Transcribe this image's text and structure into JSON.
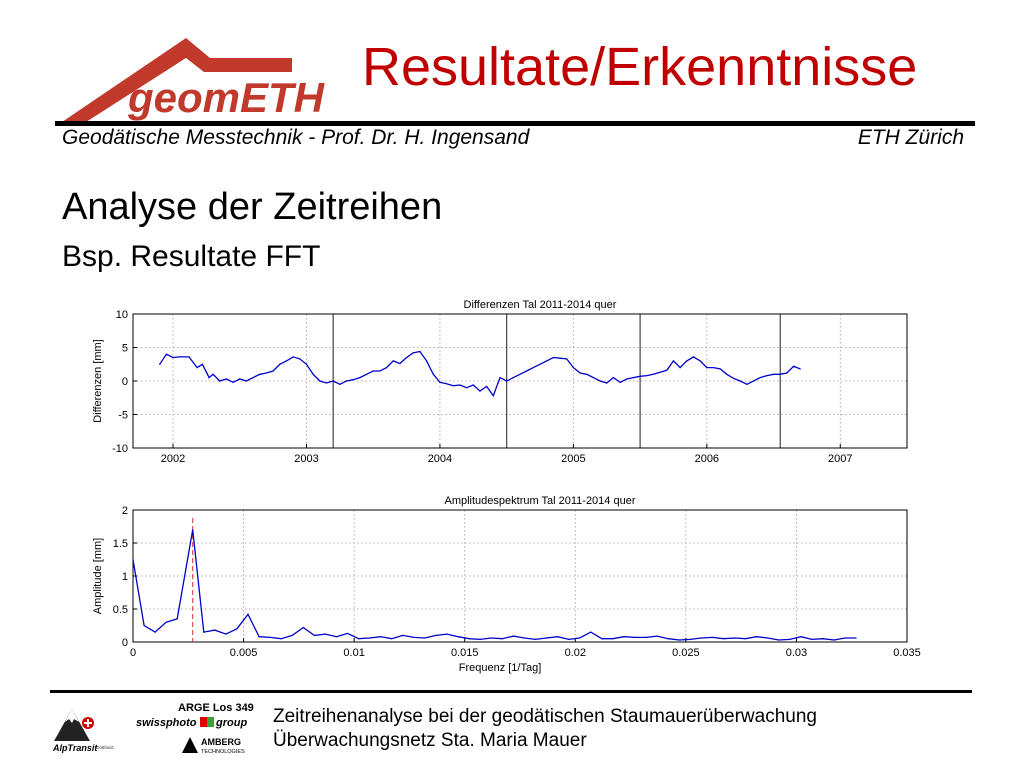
{
  "slide": {
    "logo_text": "geomETH",
    "title": "Resultate/Erkenntnisse",
    "header_left": "Geodätische Messtechnik - Prof. Dr. H. Ingensand",
    "header_right": "ETH Zürich",
    "heading": "Analyse der Zeitreihen",
    "subheading": "Bsp. Resultate FFT",
    "footer_line1": "Zeitreihenanalyse bei der geodätischen Staumauerüberwachung",
    "footer_line2": "Überwachungsnetz Sta. Maria Mauer",
    "footer_logos": {
      "arge": "ARGE Los 349",
      "swissphoto": "swissphoto",
      "group": "group",
      "alptransit": "AlpTransit",
      "alptransit_sub": "Gotthard",
      "amberg": "AMBERG",
      "amberg_sub": "TECHNOLOGIES"
    },
    "colors": {
      "title": "#c00000",
      "accent": "#c0392b",
      "series": "#0000cc",
      "marker": "#e03030"
    }
  },
  "chart_data": [
    {
      "type": "line",
      "title": "Differenzen Tal 2011-2014 quer",
      "ylabel": "Differenzen [mm]",
      "xlabel": "",
      "ylim": [
        -10,
        10
      ],
      "yticks": [
        -10,
        -5,
        0,
        5,
        10
      ],
      "xlim": [
        2001.7,
        2007.5
      ],
      "xticks": [
        2002,
        2003,
        2004,
        2005,
        2006,
        2007
      ],
      "grid": "dotted",
      "solid_verticals": [
        2003.2,
        2004.5,
        2005.5,
        2006.55
      ],
      "series": [
        {
          "x": [
            2001.9,
            2001.95,
            2002.0,
            2002.05,
            2002.12,
            2002.18,
            2002.22,
            2002.27,
            2002.3,
            2002.35,
            2002.4,
            2002.45,
            2002.5,
            2002.55,
            2002.6,
            2002.65,
            2002.7,
            2002.75,
            2002.8,
            2002.85,
            2002.9,
            2002.95,
            2003.0,
            2003.05,
            2003.1,
            2003.15,
            2003.2,
            2003.25,
            2003.3,
            2003.35,
            2003.4,
            2003.45,
            2003.5,
            2003.55,
            2003.6,
            2003.65,
            2003.7,
            2003.75,
            2003.8,
            2003.85,
            2003.9,
            2003.95,
            2004.0,
            2004.05,
            2004.1,
            2004.15,
            2004.2,
            2004.25,
            2004.3,
            2004.35,
            2004.4,
            2004.45,
            2004.5,
            2004.55,
            2004.6,
            2004.65,
            2004.7,
            2004.75,
            2004.8,
            2004.85,
            2004.9,
            2004.95,
            2005.0,
            2005.05,
            2005.1,
            2005.15,
            2005.2,
            2005.25,
            2005.3,
            2005.35,
            2005.4,
            2005.45,
            2005.5,
            2005.55,
            2005.6,
            2005.65,
            2005.7,
            2005.75,
            2005.8,
            2005.85,
            2005.9,
            2005.95,
            2006.0,
            2006.05,
            2006.1,
            2006.15,
            2006.2,
            2006.25,
            2006.3,
            2006.35,
            2006.4,
            2006.45,
            2006.5,
            2006.55,
            2006.6,
            2006.65,
            2006.7
          ],
          "values": [
            2.5,
            4.0,
            3.5,
            3.6,
            3.6,
            2.0,
            2.5,
            0.5,
            1.0,
            0.0,
            0.3,
            -0.2,
            0.3,
            0.0,
            0.5,
            1.0,
            1.2,
            1.5,
            2.5,
            3.0,
            3.6,
            3.3,
            2.5,
            1.0,
            0.0,
            -0.3,
            0.0,
            -0.5,
            0.0,
            0.2,
            0.5,
            1.0,
            1.5,
            1.5,
            2.0,
            3.0,
            2.6,
            3.5,
            4.2,
            4.4,
            3.0,
            1.0,
            -0.2,
            -0.4,
            -0.7,
            -0.6,
            -1.0,
            -0.6,
            -1.5,
            -0.8,
            -2.2,
            0.5,
            0.0,
            0.5,
            1.0,
            1.5,
            2.0,
            2.5,
            3.0,
            3.5,
            3.4,
            3.3,
            2.0,
            1.2,
            1.0,
            0.5,
            0.0,
            -0.3,
            0.5,
            -0.2,
            0.3,
            0.5,
            0.7,
            0.8,
            1.0,
            1.3,
            1.6,
            3.0,
            2.0,
            3.0,
            3.6,
            3.0,
            2.0,
            2.0,
            1.8,
            1.0,
            0.4,
            0.0,
            -0.5,
            0.0,
            0.5,
            0.8,
            1.0,
            1.0,
            1.2,
            2.2,
            1.8
          ]
        }
      ]
    },
    {
      "type": "line",
      "title": "Amplitudespektrum Tal 2011-2014 quer",
      "ylabel": "Amplitude [mm]",
      "xlabel": "Frequenz [1/Tag]",
      "ylim": [
        0,
        2
      ],
      "yticks": [
        0,
        0.5,
        1,
        1.5,
        2
      ],
      "xlim": [
        0,
        0.035
      ],
      "xticks": [
        0,
        0.005,
        0.01,
        0.015,
        0.02,
        0.025,
        0.03,
        0.035
      ],
      "xtick_labels": [
        "0",
        "0.005",
        "0.01",
        "0.015",
        "0.02",
        "0.025",
        "0.03",
        "0.035"
      ],
      "grid": "dotted",
      "marker_line_x": 0.0027,
      "series": [
        {
          "x": [
            0.0,
            0.0005,
            0.001,
            0.0015,
            0.002,
            0.0027,
            0.0032,
            0.0037,
            0.0042,
            0.0047,
            0.0052,
            0.0057,
            0.0062,
            0.0067,
            0.0072,
            0.0077,
            0.0082,
            0.0087,
            0.0092,
            0.0097,
            0.0102,
            0.0107,
            0.0112,
            0.0117,
            0.0122,
            0.0127,
            0.0132,
            0.0137,
            0.0142,
            0.0147,
            0.0152,
            0.0157,
            0.0162,
            0.0167,
            0.0172,
            0.0177,
            0.0182,
            0.0187,
            0.0192,
            0.0197,
            0.0202,
            0.0207,
            0.0212,
            0.0217,
            0.0222,
            0.0227,
            0.0232,
            0.0237,
            0.0242,
            0.0247,
            0.0252,
            0.0257,
            0.0262,
            0.0267,
            0.0272,
            0.0277,
            0.0282,
            0.0287,
            0.0292,
            0.0297,
            0.0302,
            0.0307,
            0.0312,
            0.0317,
            0.0322,
            0.0327
          ],
          "values": [
            1.25,
            0.25,
            0.15,
            0.3,
            0.35,
            1.7,
            0.15,
            0.18,
            0.12,
            0.2,
            0.42,
            0.08,
            0.07,
            0.05,
            0.1,
            0.22,
            0.1,
            0.12,
            0.08,
            0.13,
            0.05,
            0.06,
            0.08,
            0.05,
            0.1,
            0.07,
            0.06,
            0.1,
            0.12,
            0.08,
            0.05,
            0.04,
            0.06,
            0.05,
            0.09,
            0.06,
            0.04,
            0.06,
            0.08,
            0.04,
            0.06,
            0.15,
            0.05,
            0.05,
            0.08,
            0.07,
            0.07,
            0.09,
            0.05,
            0.03,
            0.04,
            0.06,
            0.07,
            0.05,
            0.06,
            0.05,
            0.08,
            0.06,
            0.03,
            0.04,
            0.08,
            0.04,
            0.05,
            0.03,
            0.06,
            0.06
          ]
        }
      ]
    }
  ]
}
